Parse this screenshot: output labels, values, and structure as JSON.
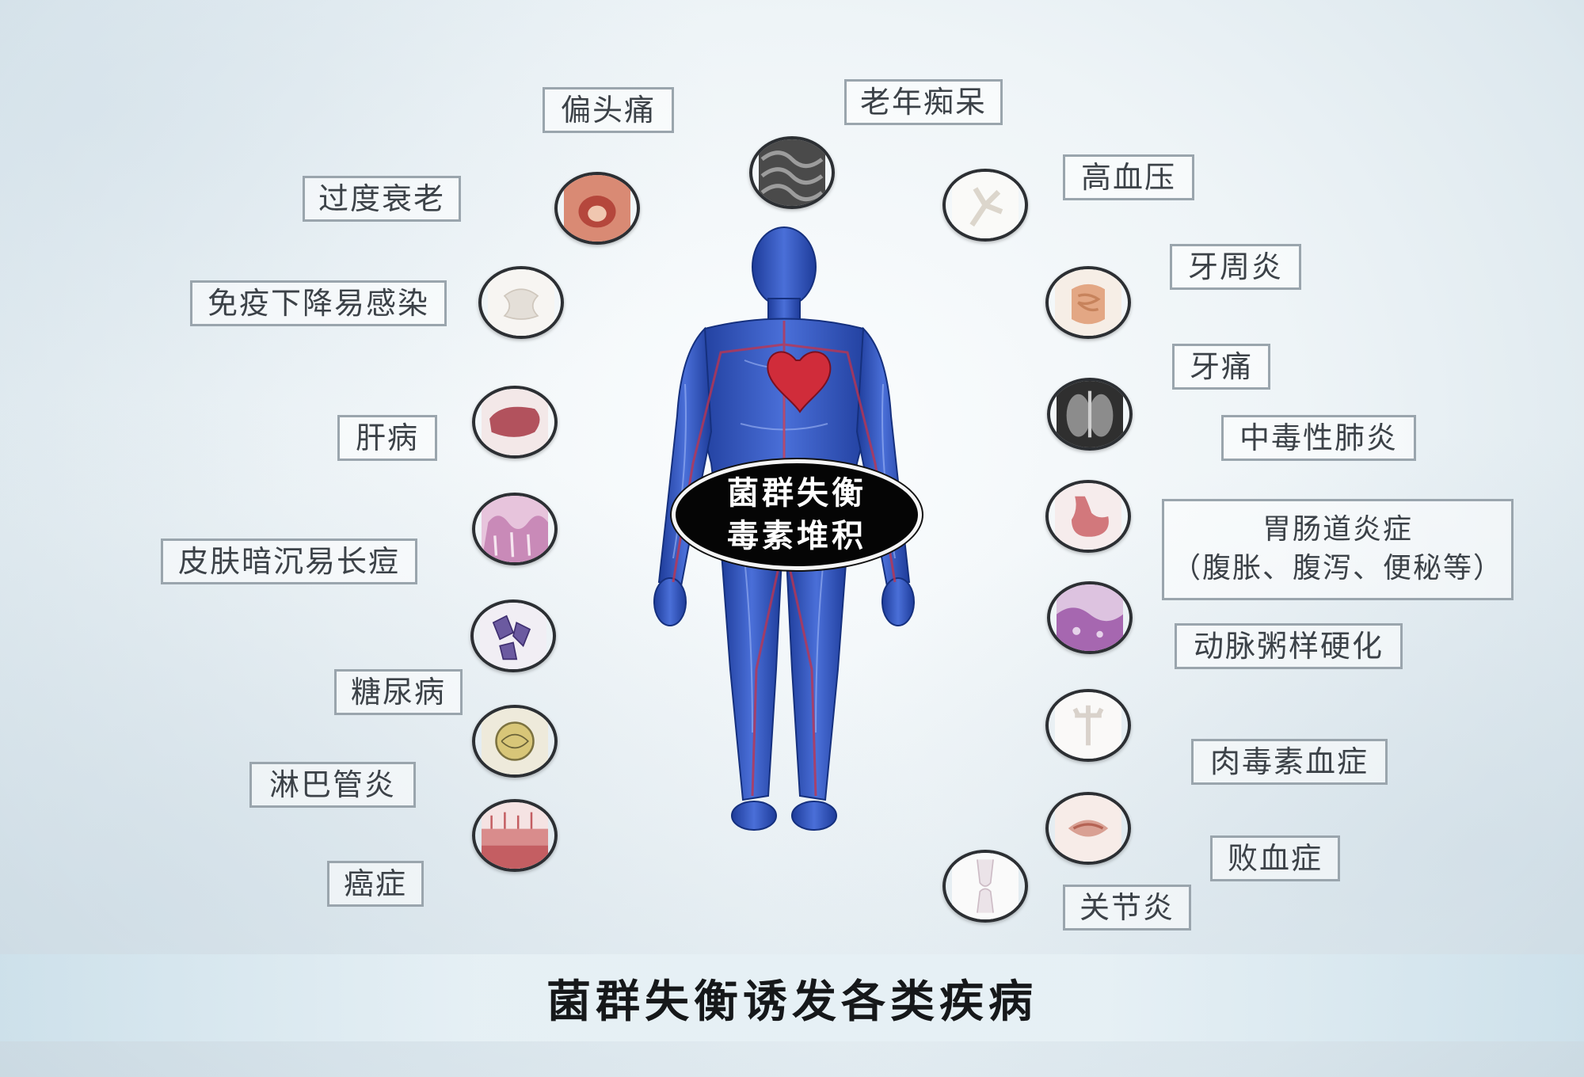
{
  "center": {
    "line1": "菌群失衡",
    "line2": "毒素堆积"
  },
  "footer": {
    "title": "菌群失衡诱发各类疾病"
  },
  "left_labels": {
    "migraine": "偏头痛",
    "aging": "过度衰老",
    "immunity": "免疫下降易感染",
    "liver": "肝病",
    "skin": "皮肤暗沉易长痘",
    "diabetes": "糖尿病",
    "lymph": "淋巴管炎",
    "cancer": "癌症"
  },
  "right_labels": {
    "dementia": "老年痴呆",
    "hypertension": "高血压",
    "periodontitis": "牙周炎",
    "toothache": "牙痛",
    "pneumonia": "中毒性肺炎",
    "gi_line1": "胃肠道炎症",
    "gi_line2": "（腹胀、腹泻、便秘等）",
    "atherosclerosis": "动脉粥样硬化",
    "botulism": "肉毒素血症",
    "sepsis": "败血症",
    "arthritis": "关节炎"
  },
  "colors": {
    "body_blue": "#2d4fb8",
    "badge_bg": "#050505",
    "label_border": "#9aa5ad"
  },
  "icons": [
    "brain-tissue-icon",
    "throat-icon",
    "bone-joint-icon",
    "liver-icon",
    "skin-tissue-icon",
    "crystal-icon",
    "lymph-node-icon",
    "tissue-layer-icon",
    "blood-vessel-icon",
    "intestine-icon",
    "lung-xray-icon",
    "stomach-icon",
    "artery-icon",
    "bone-icon",
    "mouth-icon",
    "knee-joint-icon"
  ]
}
